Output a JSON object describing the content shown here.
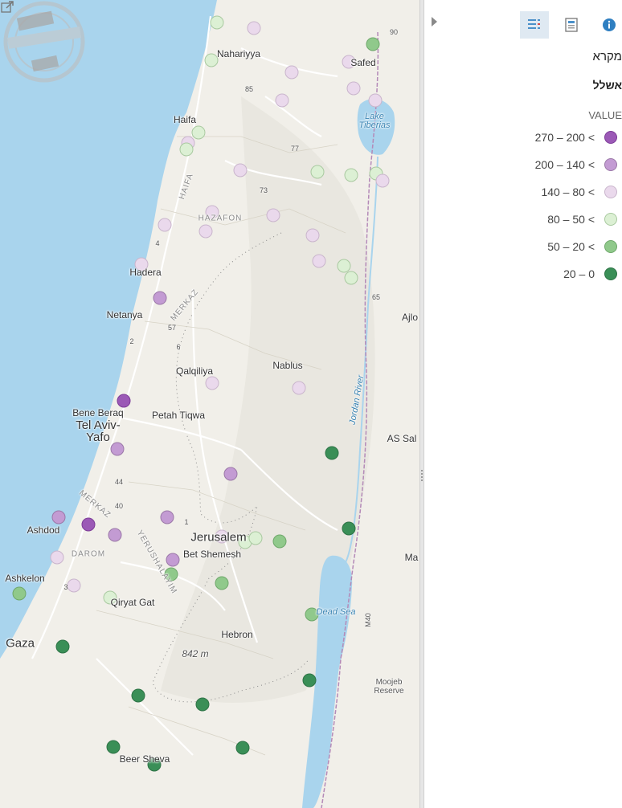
{
  "legend": {
    "title": "מקרא",
    "layer": "אשלל",
    "field": "VALUE",
    "classes": [
      {
        "label": "270 – 200 <",
        "color": "#9b59b6"
      },
      {
        "label": "200 – 140 <",
        "color": "#c39bd3"
      },
      {
        "label": "140 – 80 <",
        "color": "#ead9ec"
      },
      {
        "label": "80 – 50 <",
        "color": "#dcf0d4"
      },
      {
        "label": "50 – 20 <",
        "color": "#90c98b"
      },
      {
        "label": "20 – 0",
        "color": "#3a8f57"
      }
    ]
  },
  "toolbar": {
    "legend_icon": "legend-list-icon",
    "layers_icon": "layers-icon",
    "info_icon": "info-icon"
  },
  "map": {
    "labels": {
      "nahariyya": "Nahariyya",
      "safed": "Safed",
      "haifa": "Haifa",
      "lake": "Lake Tiberias",
      "hadera": "Hadera",
      "netanya": "Netanya",
      "qalqiliya": "Qalqiliya",
      "nablus": "Nablus",
      "bene_beraq": "Bene Beraq",
      "tel_aviv": "Tel Aviv-\nYafo",
      "petah": "Petah Tiqwa",
      "ajlo": "Ajlo",
      "as_sal": "AS Sal",
      "ashdod": "Ashdod",
      "jerusalem": "Jerusalem",
      "bet_shemesh": "Bet Shemesh",
      "ma": "Ma",
      "ashkelon": "Ashkelon",
      "qiryat_gat": "Qiryat Gat",
      "dead_sea": "Dead Sea",
      "gaza": "Gaza",
      "hebron": "Hebron",
      "elevation": "842 m",
      "mujib": "Moojeb Reserve",
      "beer_sheva": "Beer Sheva",
      "region_haifa": "HAIFA",
      "region_hazafon": "HAZAFON",
      "region_merkaz": "MERKAZ",
      "region_merkaz2": "MERKAZ",
      "region_darom": "DAROM",
      "region_yerushalayim": "YERUSHALAYIM",
      "river_jordan": "Jordan River",
      "route_85": "85",
      "route_77": "77",
      "route_73": "73",
      "route_65": "65",
      "route_90": "90",
      "route_57": "57",
      "route_44": "44",
      "route_40": "40",
      "route_6": "6",
      "route_4": "4",
      "route_2": "2",
      "route_1": "1",
      "route_3": "3",
      "route_m40": "M40"
    },
    "stamp": {
      "top": "מחשבה",
      "middle": "NETFREE",
      "bottom": "מוגן"
    }
  },
  "points": [
    {
      "cls": 3
    },
    {
      "cls": 2
    },
    {
      "cls": 3
    },
    {
      "cls": 4
    },
    {
      "cls": 2
    },
    {
      "cls": 2
    },
    {
      "cls": 2
    },
    {
      "cls": 2
    },
    {
      "cls": 2
    },
    {
      "cls": 3
    },
    {
      "cls": 2
    },
    {
      "cls": 3
    },
    {
      "cls": 2
    },
    {
      "cls": 3
    },
    {
      "cls": 3
    },
    {
      "cls": 3
    },
    {
      "cls": 2
    },
    {
      "cls": 2
    },
    {
      "cls": 2
    },
    {
      "cls": 2
    },
    {
      "cls": 2
    },
    {
      "cls": 2
    },
    {
      "cls": 2
    },
    {
      "cls": 3
    },
    {
      "cls": 3
    },
    {
      "cls": 2
    },
    {
      "cls": 1
    },
    {
      "cls": 2
    },
    {
      "cls": 0
    },
    {
      "cls": 2
    },
    {
      "cls": 1
    },
    {
      "cls": 5
    },
    {
      "cls": 1
    },
    {
      "cls": 1
    },
    {
      "cls": 1
    },
    {
      "cls": 1
    },
    {
      "cls": 0
    },
    {
      "cls": 1
    },
    {
      "cls": 5
    },
    {
      "cls": 2
    },
    {
      "cls": 3
    },
    {
      "cls": 3
    },
    {
      "cls": 4
    },
    {
      "cls": 2
    },
    {
      "cls": 4
    },
    {
      "cls": 4
    },
    {
      "cls": 2
    },
    {
      "cls": 4
    },
    {
      "cls": 3
    },
    {
      "cls": 4
    },
    {
      "cls": 5
    },
    {
      "cls": 5
    },
    {
      "cls": 5
    },
    {
      "cls": 5
    },
    {
      "cls": 5
    },
    {
      "cls": 5
    },
    {
      "cls": 5
    },
    {
      "cls": 5
    }
  ]
}
